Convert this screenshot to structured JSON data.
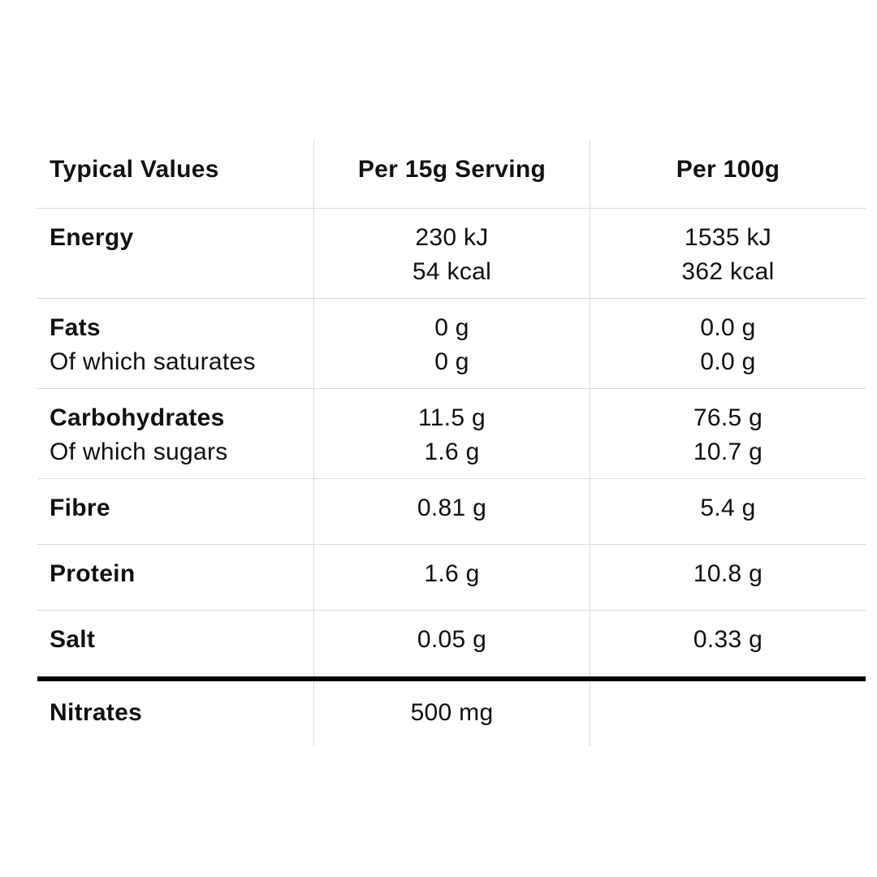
{
  "header": {
    "col_label": "Typical Values",
    "col_serving": "Per 15g Serving",
    "col_100g": "Per 100g"
  },
  "rows": [
    {
      "label": "Energy",
      "sublabel": "",
      "serving": [
        "230 kJ",
        "54 kcal"
      ],
      "per100g": [
        "1535 kJ",
        "362 kcal"
      ]
    },
    {
      "label": "Fats",
      "sublabel": "Of which saturates",
      "serving": [
        "0 g",
        "0 g"
      ],
      "per100g": [
        "0.0 g",
        "0.0 g"
      ]
    },
    {
      "label": "Carbohydrates",
      "sublabel": "Of which sugars",
      "serving": [
        "11.5 g",
        "1.6 g"
      ],
      "per100g": [
        "76.5 g",
        "10.7 g"
      ]
    },
    {
      "label": "Fibre",
      "serving": [
        "0.81 g"
      ],
      "per100g": [
        "5.4 g"
      ]
    },
    {
      "label": "Protein",
      "serving": [
        "1.6 g"
      ],
      "per100g": [
        "10.8 g"
      ]
    },
    {
      "label": "Salt",
      "serving": [
        "0.05 g"
      ],
      "per100g": [
        "0.33 g"
      ]
    }
  ],
  "footer": {
    "label": "Nitrates",
    "serving": "500 mg",
    "per100g": ""
  }
}
